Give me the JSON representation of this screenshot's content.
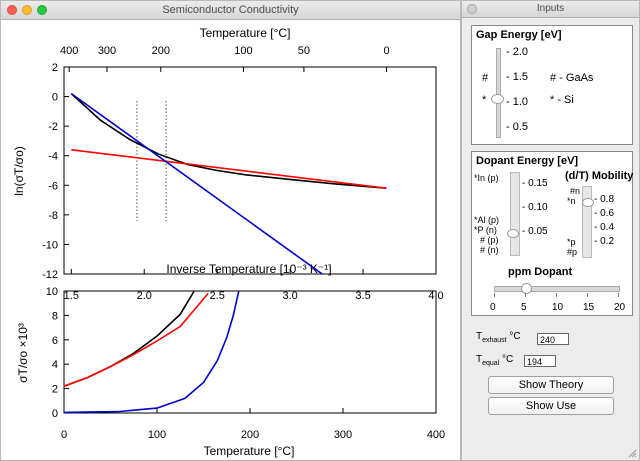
{
  "main_window": {
    "title": "Semiconductor Conductivity"
  },
  "inputs_window": {
    "title": "Inputs"
  },
  "top_plot": {
    "top_axis_label": "Temperature [°C]",
    "top_ticks": [
      "400",
      "300",
      "200",
      "100",
      "50",
      "0"
    ],
    "y_ticks": [
      "2",
      "0",
      "-2",
      "-4",
      "-6",
      "-8",
      "-10",
      "-12"
    ],
    "ylabel": "ln(σT/σo)",
    "xlabel": "Inverse Temperature [10⁻³ K⁻¹]",
    "x_ticks": [
      "1.5",
      "2.0",
      "2.5",
      "3.0",
      "3.5",
      "4.0"
    ]
  },
  "bottom_plot": {
    "y_ticks": [
      "10",
      "8",
      "6",
      "4",
      "2",
      "0"
    ],
    "ylabel": "σT/σo ×10³",
    "x_ticks": [
      "0",
      "100",
      "200",
      "300",
      "400"
    ],
    "xlabel": "Temperature [°C]"
  },
  "chart_data": [
    {
      "type": "line",
      "xlabel": "Inverse Temperature [10⁻³ K⁻¹]",
      "ylabel": "ln(σT/σo)",
      "xlim": [
        1.45,
        4.0
      ],
      "ylim": [
        -12,
        2
      ],
      "series": [
        {
          "color": "#000000",
          "x": [
            1.5,
            1.7,
            1.9,
            2.1,
            2.3,
            2.5,
            2.7,
            3.0,
            3.3,
            3.66
          ],
          "y": [
            0.2,
            -1.6,
            -2.9,
            -3.9,
            -4.6,
            -5.0,
            -5.3,
            -5.6,
            -5.9,
            -6.2
          ]
        },
        {
          "color": "#ff0000",
          "x": [
            1.5,
            3.66
          ],
          "y": [
            -3.6,
            -6.2
          ]
        },
        {
          "color": "#0000cc",
          "x": [
            1.5,
            3.22
          ],
          "y": [
            0.2,
            -12
          ]
        }
      ],
      "vlines": [
        1.95,
        2.15
      ]
    },
    {
      "type": "line",
      "xlabel": "Temperature [°C]",
      "ylabel": "σT/σo ×10³",
      "xlim": [
        0,
        400
      ],
      "ylim": [
        0,
        10
      ],
      "series": [
        {
          "color": "#000000",
          "x": [
            0,
            25,
            50,
            75,
            100,
            125,
            140
          ],
          "y": [
            2.2,
            2.9,
            3.8,
            4.9,
            6.3,
            8.1,
            10.0
          ]
        },
        {
          "color": "#ff0000",
          "x": [
            0,
            25,
            50,
            75,
            100,
            125,
            155
          ],
          "y": [
            2.2,
            2.9,
            3.8,
            4.8,
            5.9,
            7.1,
            9.8
          ]
        },
        {
          "color": "#0000cc",
          "x": [
            0,
            60,
            100,
            130,
            150,
            165,
            175,
            182,
            188
          ],
          "y": [
            0.05,
            0.12,
            0.4,
            1.2,
            2.5,
            4.3,
            6.2,
            8.0,
            10.0
          ]
        }
      ]
    }
  ],
  "gap_energy": {
    "title": "Gap Energy [eV]",
    "ticks": [
      "2.0",
      "1.5",
      "1.0",
      "0.5"
    ],
    "marks": [
      "#",
      "*"
    ],
    "legend": [
      "# - GaAs",
      "* - Si"
    ]
  },
  "dopant_energy": {
    "title": "Dopant Energy [eV]",
    "ticks": [
      "0.15",
      "0.10",
      "0.05"
    ],
    "marks": [
      "*In (p)",
      "*Al (p)",
      "*P (n)",
      "# (p)",
      "# (n)"
    ],
    "mobility_title": "(d/T) Mobility",
    "mobility_ticks": [
      "0.8",
      "0.6",
      "0.4",
      "0.2"
    ],
    "mobility_marks": [
      "#n",
      "*n",
      "*p",
      "#p"
    ]
  },
  "ppm_dopant": {
    "title": "ppm Dopant",
    "ticks": [
      "0",
      "5",
      "10",
      "15",
      "20"
    ],
    "value": 5
  },
  "t_exhaust": {
    "label": "T",
    "sub": "exhaust",
    "unit": "°C",
    "value": "240"
  },
  "t_equal": {
    "label": "T",
    "sub": "equal",
    "unit": "°C",
    "value": "194"
  },
  "buttons": {
    "show_theory": "Show Theory",
    "show_use": "Show Use"
  }
}
